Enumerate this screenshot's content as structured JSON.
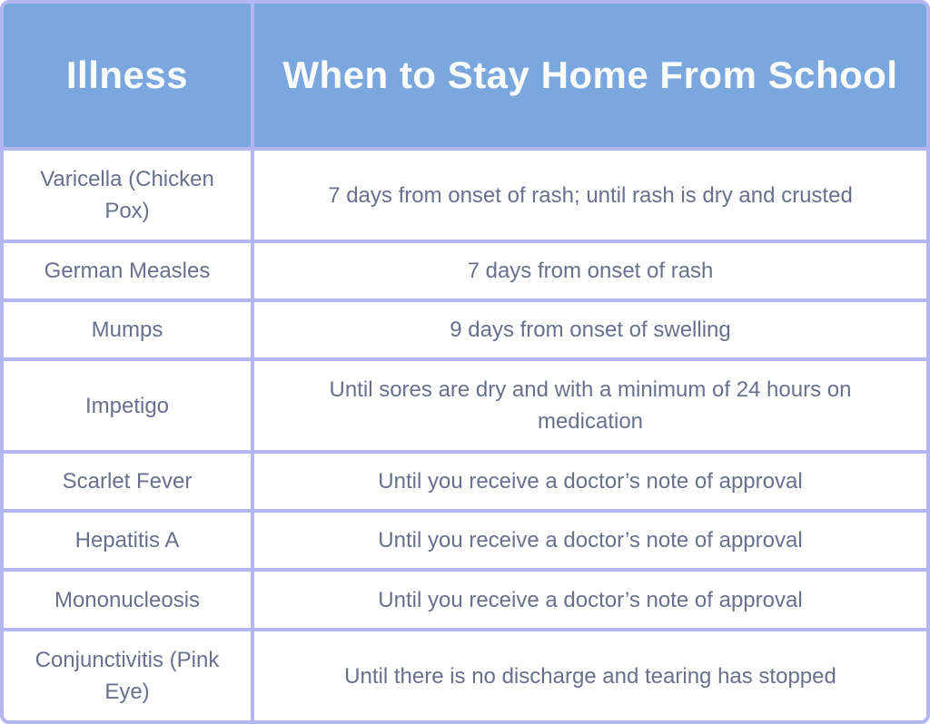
{
  "colors": {
    "header_bg": "#7aa7de",
    "header_text": "#fafcfe",
    "border": "#b2b6f2",
    "row_bg": "#ffffff",
    "body_text": "#68708c"
  },
  "table": {
    "headers": [
      {
        "label": "Illness"
      },
      {
        "label": "When to Stay Home From School"
      }
    ],
    "rows": [
      {
        "illness": "Varicella (Chicken Pox)",
        "guidance": "7 days from onset of rash; until rash is dry and crusted"
      },
      {
        "illness": "German Measles",
        "guidance": "7 days from onset of rash"
      },
      {
        "illness": "Mumps",
        "guidance": "9 days from onset of swelling"
      },
      {
        "illness": "Impetigo",
        "guidance": "Until sores are dry and with a minimum of 24 hours on medication"
      },
      {
        "illness": "Scarlet Fever",
        "guidance": "Until you receive a doctor’s note of approval"
      },
      {
        "illness": "Hepatitis A",
        "guidance": "Until you receive a doctor’s note of approval"
      },
      {
        "illness": "Mononucleosis",
        "guidance": "Until you receive a doctor’s note of approval"
      },
      {
        "illness": "Conjunctivitis (Pink Eye)",
        "guidance": "Until there is no discharge and tearing has stopped"
      }
    ]
  },
  "chart_data": {
    "type": "table",
    "title": "When to Stay Home From School",
    "columns": [
      "Illness",
      "When to Stay Home From School"
    ],
    "rows": [
      [
        "Varicella (Chicken Pox)",
        "7 days from onset of rash; until rash is dry and crusted"
      ],
      [
        "German Measles",
        "7 days from onset of rash"
      ],
      [
        "Mumps",
        "9 days from onset of swelling"
      ],
      [
        "Impetigo",
        "Until sores are dry and with a minimum of 24 hours on medication"
      ],
      [
        "Scarlet Fever",
        "Until you receive a doctor’s note of approval"
      ],
      [
        "Hepatitis A",
        "Until you receive a doctor’s note of approval"
      ],
      [
        "Mononucleosis",
        "Until you receive a doctor’s note of approval"
      ],
      [
        "Conjunctivitis (Pink Eye)",
        "Until there is no discharge and tearing has stopped"
      ]
    ],
    "layout": {
      "header_row": true,
      "grid": true,
      "text_align": "center"
    }
  }
}
